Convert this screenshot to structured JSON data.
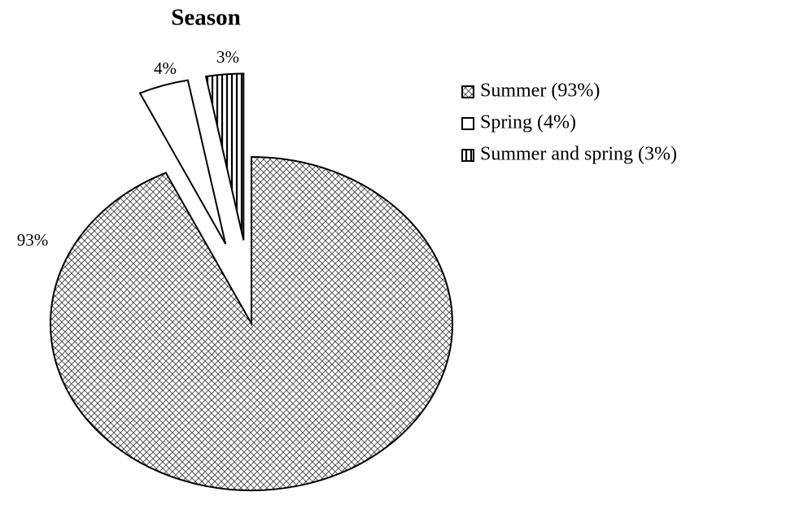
{
  "chart_data": {
    "type": "pie",
    "title": "Season",
    "categories": [
      "Summer (93%)",
      "Spring (4%)",
      "Summer and spring (3%)"
    ],
    "values": [
      93,
      4,
      3
    ],
    "value_labels": [
      "93%",
      "4%",
      "3%"
    ],
    "patterns": [
      "crosshatch",
      "none",
      "vertical"
    ],
    "exploded": [
      false,
      true,
      true
    ],
    "legend": "right"
  }
}
